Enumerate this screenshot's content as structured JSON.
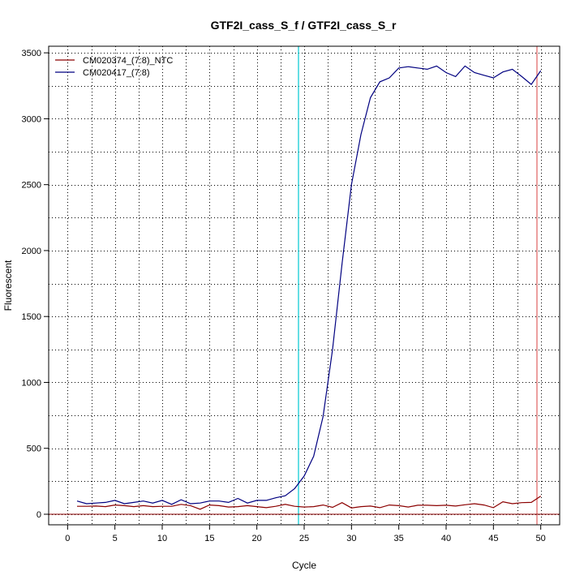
{
  "chart_data": {
    "type": "line",
    "title": "GTF2I_cass_S_f / GTF2I_cass_S_r",
    "xlabel": "Cycle",
    "ylabel": "Fluorescent",
    "xlim": [
      -2,
      52
    ],
    "ylim": [
      -80,
      3550
    ],
    "xticks": [
      0,
      5,
      10,
      15,
      20,
      25,
      30,
      35,
      40,
      45,
      50
    ],
    "yticks": [
      0,
      500,
      1000,
      1500,
      2000,
      2500,
      3000,
      3500
    ],
    "grid": true,
    "legend_position": "top-left",
    "threshold_line": {
      "y": 0,
      "color": "#8b0000"
    },
    "vertical_lines": [
      {
        "x": 24.4,
        "color": "#00c8d2"
      },
      {
        "x": 49.6,
        "color": "#e06060"
      }
    ],
    "series": [
      {
        "name": "CM020374_(7:8)_NTC",
        "color": "#8b0000",
        "x": [
          1,
          2,
          3,
          4,
          5,
          6,
          7,
          8,
          9,
          10,
          11,
          12,
          13,
          14,
          15,
          16,
          17,
          18,
          19,
          20,
          21,
          22,
          23,
          24,
          25,
          26,
          27,
          28,
          29,
          30,
          31,
          32,
          33,
          34,
          35,
          36,
          37,
          38,
          39,
          40,
          41,
          42,
          43,
          44,
          45,
          46,
          47,
          48,
          49,
          50
        ],
        "values": [
          60,
          60,
          62,
          58,
          70,
          65,
          58,
          65,
          58,
          60,
          60,
          75,
          65,
          38,
          70,
          65,
          55,
          58,
          65,
          58,
          50,
          60,
          75,
          60,
          55,
          58,
          70,
          52,
          88,
          48,
          58,
          62,
          50,
          70,
          65,
          55,
          68,
          68,
          65,
          68,
          62,
          72,
          80,
          70,
          50,
          95,
          80,
          88,
          90,
          138
        ]
      },
      {
        "name": "CM020417_(7:8)",
        "color": "#000080",
        "x": [
          1,
          2,
          3,
          4,
          5,
          6,
          7,
          8,
          9,
          10,
          11,
          12,
          13,
          14,
          15,
          16,
          17,
          18,
          19,
          20,
          21,
          22,
          23,
          24,
          25,
          26,
          27,
          28,
          29,
          30,
          31,
          32,
          33,
          34,
          35,
          36,
          37,
          38,
          39,
          40,
          41,
          42,
          43,
          44,
          45,
          46,
          47,
          48,
          49,
          50
        ],
        "values": [
          100,
          80,
          85,
          90,
          105,
          80,
          90,
          100,
          85,
          105,
          75,
          110,
          80,
          85,
          100,
          100,
          90,
          120,
          85,
          105,
          105,
          125,
          140,
          195,
          290,
          440,
          740,
          1250,
          1900,
          2500,
          2880,
          3160,
          3280,
          3310,
          3385,
          3395,
          3385,
          3375,
          3400,
          3350,
          3320,
          3400,
          3350,
          3330,
          3310,
          3355,
          3375,
          3320,
          3260,
          3365
        ]
      }
    ]
  }
}
